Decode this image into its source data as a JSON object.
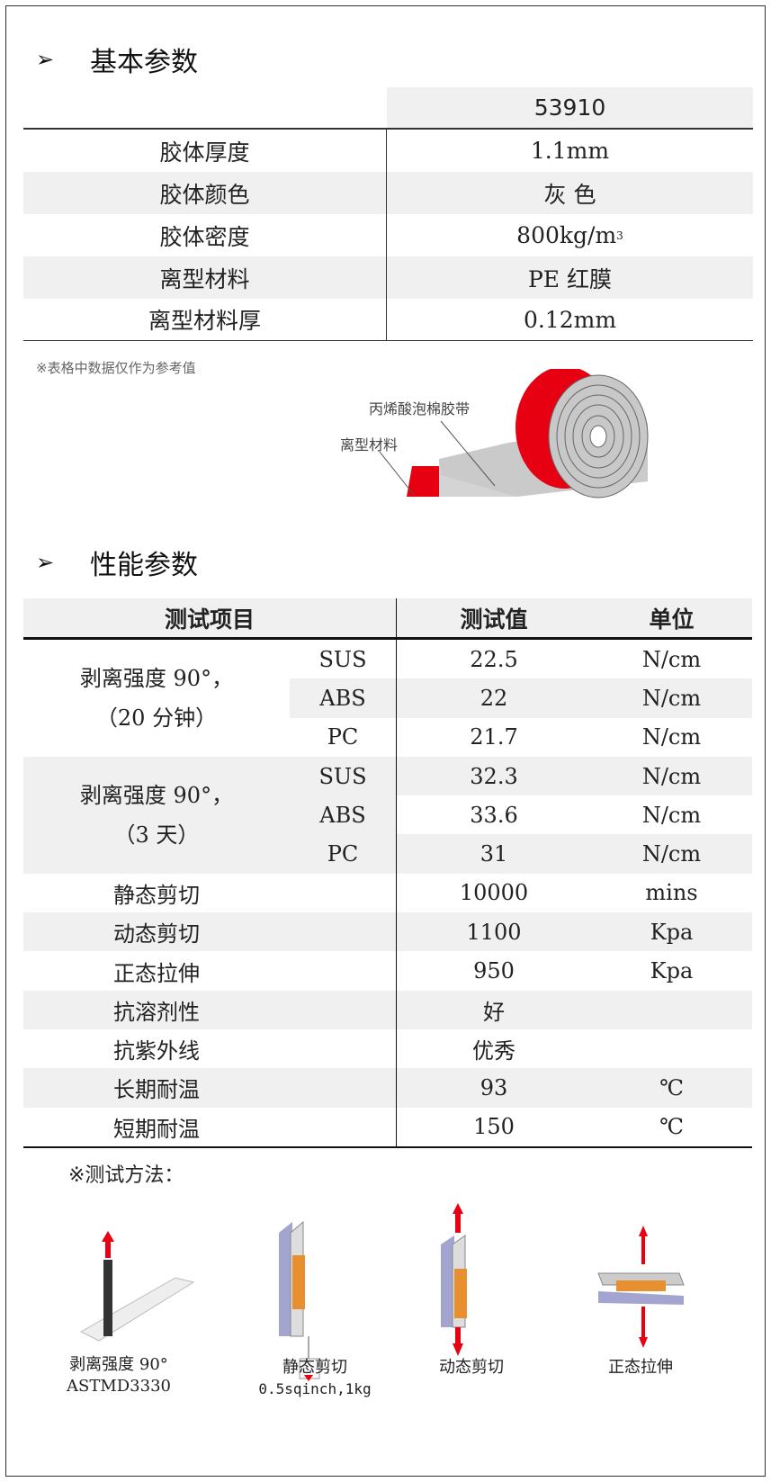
{
  "basic": {
    "title": "基本参数",
    "header": "53910",
    "rows": [
      {
        "label": "胶体厚度",
        "value": "1.1mm"
      },
      {
        "label": "胶体颜色",
        "value": "灰 色"
      },
      {
        "label": "胶体密度",
        "value": "800kg/m",
        "sup": "3"
      },
      {
        "label": "离型材料",
        "value": "PE 红膜"
      },
      {
        "label": "离型材料厚",
        "value": "0.12mm"
      }
    ]
  },
  "note": "※表格中数据仅作为参考值",
  "diagram": {
    "tape_label": "丙烯酸泡棉胶带",
    "liner_label": "离型材料",
    "colors": {
      "liner": "#e60012",
      "foam": "#c8c8c8"
    }
  },
  "performance": {
    "title": "性能参数",
    "headers": [
      "测试项目",
      "测试值",
      "单位"
    ],
    "groups": [
      {
        "label1": "剥离强度 90°，",
        "label2": "（20 分钟）",
        "rows": [
          {
            "sub": "SUS",
            "value": "22.5",
            "unit": "N/cm"
          },
          {
            "sub": "ABS",
            "value": "22",
            "unit": "N/cm"
          },
          {
            "sub": "PC",
            "value": "21.7",
            "unit": "N/cm"
          }
        ]
      },
      {
        "label1": "剥离强度 90°，",
        "label2": "（3 天）",
        "rows": [
          {
            "sub": "SUS",
            "value": "32.3",
            "unit": "N/cm"
          },
          {
            "sub": "ABS",
            "value": "33.6",
            "unit": "N/cm"
          },
          {
            "sub": "PC",
            "value": "31",
            "unit": "N/cm"
          }
        ]
      }
    ],
    "rows": [
      {
        "item": "静态剪切",
        "value": "10000",
        "unit": "mins"
      },
      {
        "item": "动态剪切",
        "value": "1100",
        "unit": "Kpa"
      },
      {
        "item": "正态拉伸",
        "value": "950",
        "unit": "Kpa"
      },
      {
        "item": "抗溶剂性",
        "value": "好",
        "unit": ""
      },
      {
        "item": "抗紫外线",
        "value": "优秀",
        "unit": ""
      },
      {
        "item": "长期耐温",
        "value": "93",
        "unit": "℃"
      },
      {
        "item": "短期耐温",
        "value": "150",
        "unit": "℃"
      }
    ]
  },
  "methods": {
    "title": "※测试方法：",
    "items": [
      {
        "label": "剥离强度 90°",
        "sub": "ASTMD3330"
      },
      {
        "label": "静态剪切",
        "sub": "0.5sqinch,1kg"
      },
      {
        "label": "动态剪切",
        "sub": ""
      },
      {
        "label": "正态拉伸",
        "sub": ""
      }
    ]
  }
}
